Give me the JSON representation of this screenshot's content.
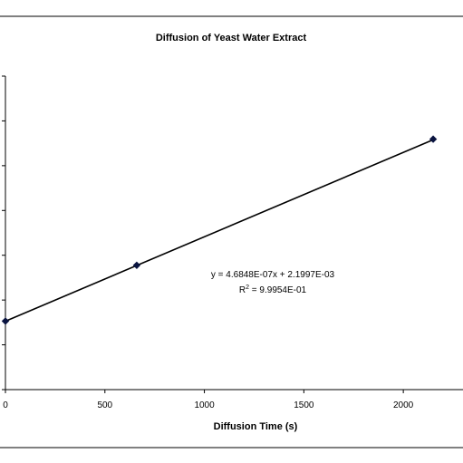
{
  "chart_data": {
    "type": "scatter",
    "title": "Diffusion of Yeast Water Extract",
    "xlabel": "Diffusion Time (s)",
    "ylabel": "",
    "xlim": [
      0,
      2300
    ],
    "ylim": [
      0.00182,
      0.00356
    ],
    "x_ticks": [
      "0",
      "500",
      "1000",
      "1500",
      "2000"
    ],
    "series": [
      {
        "x": [
          0,
          660,
          2150
        ],
        "y": [
          0.0022,
          0.00251,
          0.00321
        ]
      }
    ],
    "trendline": {
      "type": "linear",
      "slope": 4.6848e-07,
      "intercept": 0.0021997
    },
    "annotation": {
      "equation": "y = 4.6848E-07x + 2.1997E-03",
      "r2_prefix": "R",
      "r2_sup": "2",
      "r2_rest": " = 9.9954E-01"
    },
    "grid": false,
    "legend": "none",
    "colors": {
      "line": "#000000",
      "marker": "#0a1440",
      "frame": "#000000"
    }
  }
}
